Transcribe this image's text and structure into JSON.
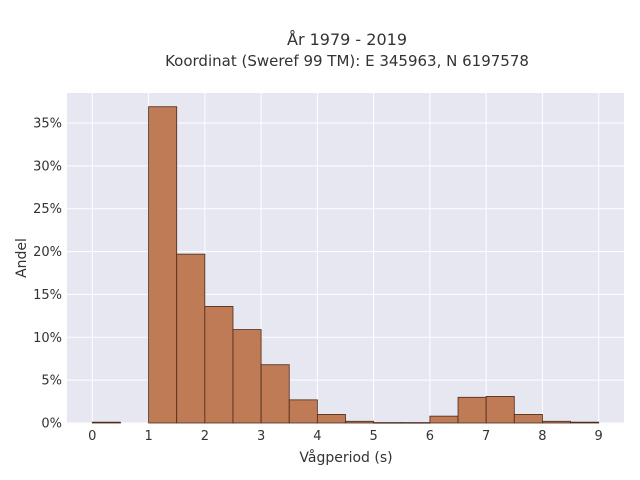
{
  "chart_data": {
    "type": "bar",
    "title_line1": "År 1979 - 2019",
    "title_line2": "Koordinat (Sweref 99 TM): E 345963, N 6197578",
    "xlabel": "Vågperiod (s)",
    "ylabel": "Andel",
    "xlim": [
      -0.45,
      9.45
    ],
    "ylim": [
      0,
      0.385
    ],
    "x_ticks": [
      0,
      1,
      2,
      3,
      4,
      5,
      6,
      7,
      8,
      9
    ],
    "x_tick_labels": [
      "0",
      "1",
      "2",
      "3",
      "4",
      "5",
      "6",
      "7",
      "8",
      "9"
    ],
    "y_ticks": [
      0,
      0.05,
      0.1,
      0.15,
      0.2,
      0.25,
      0.3,
      0.35
    ],
    "y_tick_labels": [
      "0%",
      "5%",
      "10%",
      "15%",
      "20%",
      "25%",
      "30%",
      "35%"
    ],
    "bin_width": 0.5,
    "bin_starts": [
      0,
      1,
      1.5,
      2,
      2.5,
      3,
      3.5,
      4,
      4.5,
      5,
      5.5,
      6,
      6.5,
      7,
      7.5,
      8,
      8.5
    ],
    "values": [
      0.001,
      0.369,
      0.197,
      0.136,
      0.109,
      0.068,
      0.027,
      0.01,
      0.002,
      0.0005,
      0.0005,
      0.008,
      0.03,
      0.031,
      0.01,
      0.002,
      0.001
    ],
    "grid": true,
    "bar_color": "#bf7a56",
    "bar_edge": "#4a2a18",
    "plot_bg": "#e6e7f0",
    "grid_color": "#ffffff"
  }
}
